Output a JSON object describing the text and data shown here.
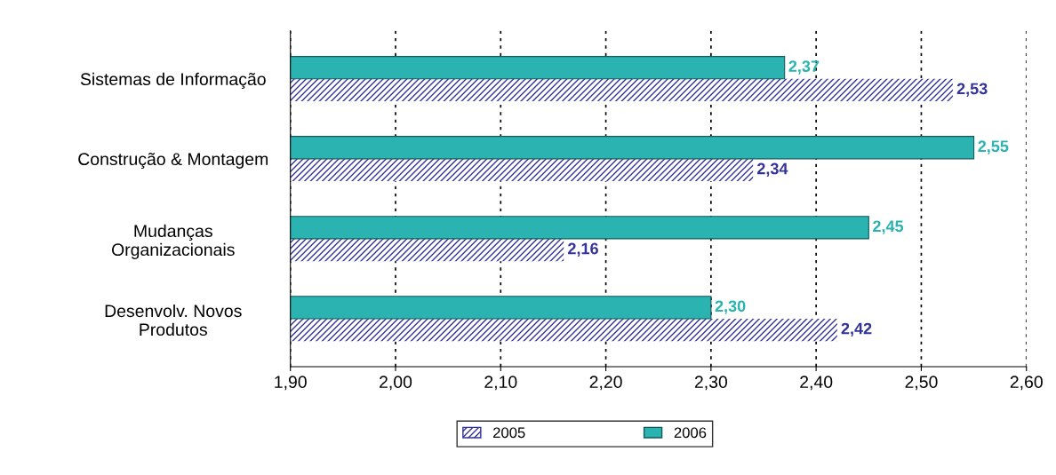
{
  "chart_data": {
    "type": "bar",
    "orientation": "horizontal",
    "categories": [
      "Sistemas de Informação",
      "Construção & Montagem",
      "Mudanças\nOrganizacionais",
      "Desenvolv. Novos\nProdutos"
    ],
    "series": [
      {
        "name": "2005",
        "color": "#333399",
        "values": [
          2.53,
          2.34,
          2.16,
          2.42
        ],
        "value_labels": [
          "2,53",
          "2,34",
          "2,16",
          "2,42"
        ]
      },
      {
        "name": "2006",
        "color": "#2ab3b0",
        "values": [
          2.37,
          2.55,
          2.45,
          2.3
        ],
        "value_labels": [
          "2,37",
          "2,55",
          "2,45",
          "2,30"
        ]
      }
    ],
    "xlim": [
      1.9,
      2.6
    ],
    "xticks": [
      {
        "value": 1.9,
        "label": "1,90"
      },
      {
        "value": 2.0,
        "label": "2,00"
      },
      {
        "value": 2.1,
        "label": "2,10"
      },
      {
        "value": 2.2,
        "label": "2,20"
      },
      {
        "value": 2.3,
        "label": "2,30"
      },
      {
        "value": 2.4,
        "label": "2,40"
      },
      {
        "value": 2.5,
        "label": "2,50"
      },
      {
        "value": 2.6,
        "label": "2,60"
      }
    ],
    "grid": "x",
    "legend": "bottom"
  }
}
